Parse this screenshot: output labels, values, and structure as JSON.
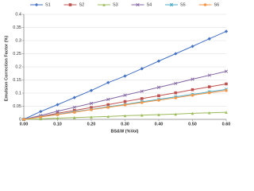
{
  "chart_data": {
    "type": "line",
    "x_label": "BS&W (%Vol)",
    "y_label": "Emulsion Correction Factor (%)",
    "x": [
      0,
      0.05,
      0.1,
      0.15,
      0.2,
      0.25,
      0.3,
      0.35,
      0.4,
      0.45,
      0.5,
      0.55,
      0.6
    ],
    "series": [
      {
        "name": "S1",
        "color": "#4472c4",
        "marker": "diamond",
        "values": [
          0,
          0.03,
          0.056,
          0.083,
          0.11,
          0.14,
          0.165,
          0.193,
          0.222,
          0.25,
          0.278,
          0.307,
          0.335
        ]
      },
      {
        "name": "S2",
        "color": "#c0504d",
        "marker": "square",
        "values": [
          0,
          0.011,
          0.023,
          0.034,
          0.045,
          0.056,
          0.068,
          0.079,
          0.09,
          0.101,
          0.113,
          0.124,
          0.135
        ]
      },
      {
        "name": "S3",
        "color": "#9bbb59",
        "marker": "triangle",
        "values": [
          0,
          0.002,
          0.005,
          0.007,
          0.009,
          0.011,
          0.014,
          0.016,
          0.018,
          0.02,
          0.023,
          0.025,
          0.027
        ]
      },
      {
        "name": "S4",
        "color": "#8064a2",
        "marker": "x",
        "values": [
          0,
          0.015,
          0.031,
          0.046,
          0.061,
          0.076,
          0.092,
          0.107,
          0.122,
          0.137,
          0.153,
          0.168,
          0.183
        ]
      },
      {
        "name": "S5",
        "color": "#4bacc6",
        "marker": "star",
        "values": [
          0,
          0.01,
          0.019,
          0.029,
          0.038,
          0.048,
          0.057,
          0.067,
          0.076,
          0.086,
          0.095,
          0.105,
          0.114
        ]
      },
      {
        "name": "S6",
        "color": "#f79646",
        "marker": "circle",
        "values": [
          0,
          0.009,
          0.018,
          0.027,
          0.037,
          0.046,
          0.055,
          0.064,
          0.073,
          0.082,
          0.092,
          0.101,
          0.11
        ]
      }
    ],
    "xlim": [
      0,
      0.6
    ],
    "xticks": [
      {
        "value": 0,
        "label": "0.00"
      },
      {
        "value": 0.1,
        "label": "0.10"
      },
      {
        "value": 0.2,
        "label": "0.20"
      },
      {
        "value": 0.3,
        "label": "0.30"
      },
      {
        "value": 0.4,
        "label": "0.40"
      },
      {
        "value": 0.5,
        "label": "0.50"
      },
      {
        "value": 0.6,
        "label": "0.60"
      }
    ],
    "ylim": [
      0,
      0.4
    ],
    "yticks": [
      0,
      0.05,
      0.1,
      0.15,
      0.2,
      0.25,
      0.3,
      0.35,
      0.4
    ],
    "grid": true,
    "legend": "top"
  }
}
